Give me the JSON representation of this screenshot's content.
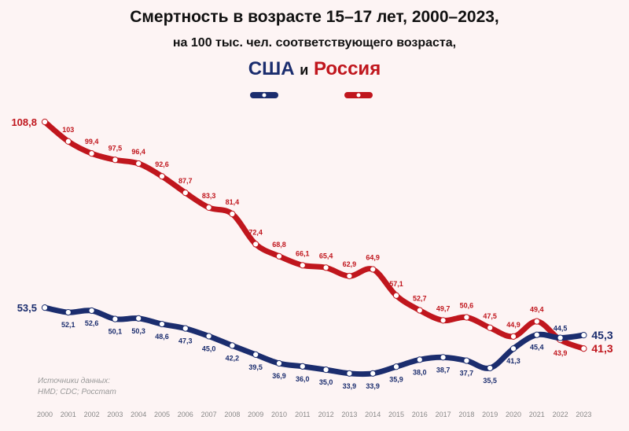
{
  "title": "Смертность в возрасте 15–17 лет, 2000–2023,",
  "subtitle": "на 100 тыс. чел. соответствующего возраста,",
  "legend": {
    "usa": "США",
    "and": "и",
    "russia": "Россия"
  },
  "source": {
    "line1": "Источники данных:",
    "line2": "HMD; CDC; Росстат"
  },
  "colors": {
    "usa": "#1b2d6e",
    "russia": "#c0161d"
  },
  "chart_data": {
    "type": "line",
    "title": "Смертность в возрасте 15–17 лет, 2000–2023, на 100 тыс. чел. соответствующего возраста",
    "x": [
      "2000",
      "2001",
      "2002",
      "2003",
      "2004",
      "2005",
      "2006",
      "2007",
      "2008",
      "2009",
      "2010",
      "2011",
      "2012",
      "2013",
      "2014",
      "2015",
      "2016",
      "2017",
      "2018",
      "2019",
      "2020",
      "2021",
      "2022",
      "2023"
    ],
    "ylim": [
      30,
      110
    ],
    "grid": false,
    "legend_position": "top",
    "series": [
      {
        "name": "Россия",
        "labels": [
          "108,8",
          "103",
          "99,4",
          "97,5",
          "96,4",
          "92,6",
          "87,7",
          "83,3",
          "81,4",
          "72,4",
          "68,8",
          "66,1",
          "65,4",
          "62,9",
          "64,9",
          "57,1",
          "52,7",
          "49,7",
          "50,6",
          "47,5",
          "44,9",
          "49,4",
          "43,9",
          "41,3"
        ],
        "values": [
          108.8,
          103,
          99.4,
          97.5,
          96.4,
          92.6,
          87.7,
          83.3,
          81.4,
          72.4,
          68.8,
          66.1,
          65.4,
          62.9,
          64.9,
          57.1,
          52.7,
          49.7,
          50.6,
          47.5,
          44.9,
          49.4,
          43.9,
          41.3
        ]
      },
      {
        "name": "США",
        "labels": [
          "53,5",
          "52,1",
          "52,6",
          "50,1",
          "50,3",
          "48,6",
          "47,3",
          "45,0",
          "42,2",
          "39,5",
          "36,9",
          "36,0",
          "35,0",
          "33,9",
          "33,9",
          "35,9",
          "38,0",
          "38,7",
          "37,7",
          "35,5",
          "41,3",
          "45,4",
          "44,5",
          "45,3"
        ],
        "values": [
          53.5,
          52.1,
          52.6,
          50.1,
          50.3,
          48.6,
          47.3,
          45.0,
          42.2,
          39.5,
          36.9,
          36.0,
          35.0,
          33.9,
          33.9,
          35.9,
          38.0,
          38.7,
          37.7,
          35.5,
          41.3,
          45.4,
          44.5,
          45.3
        ]
      }
    ]
  }
}
